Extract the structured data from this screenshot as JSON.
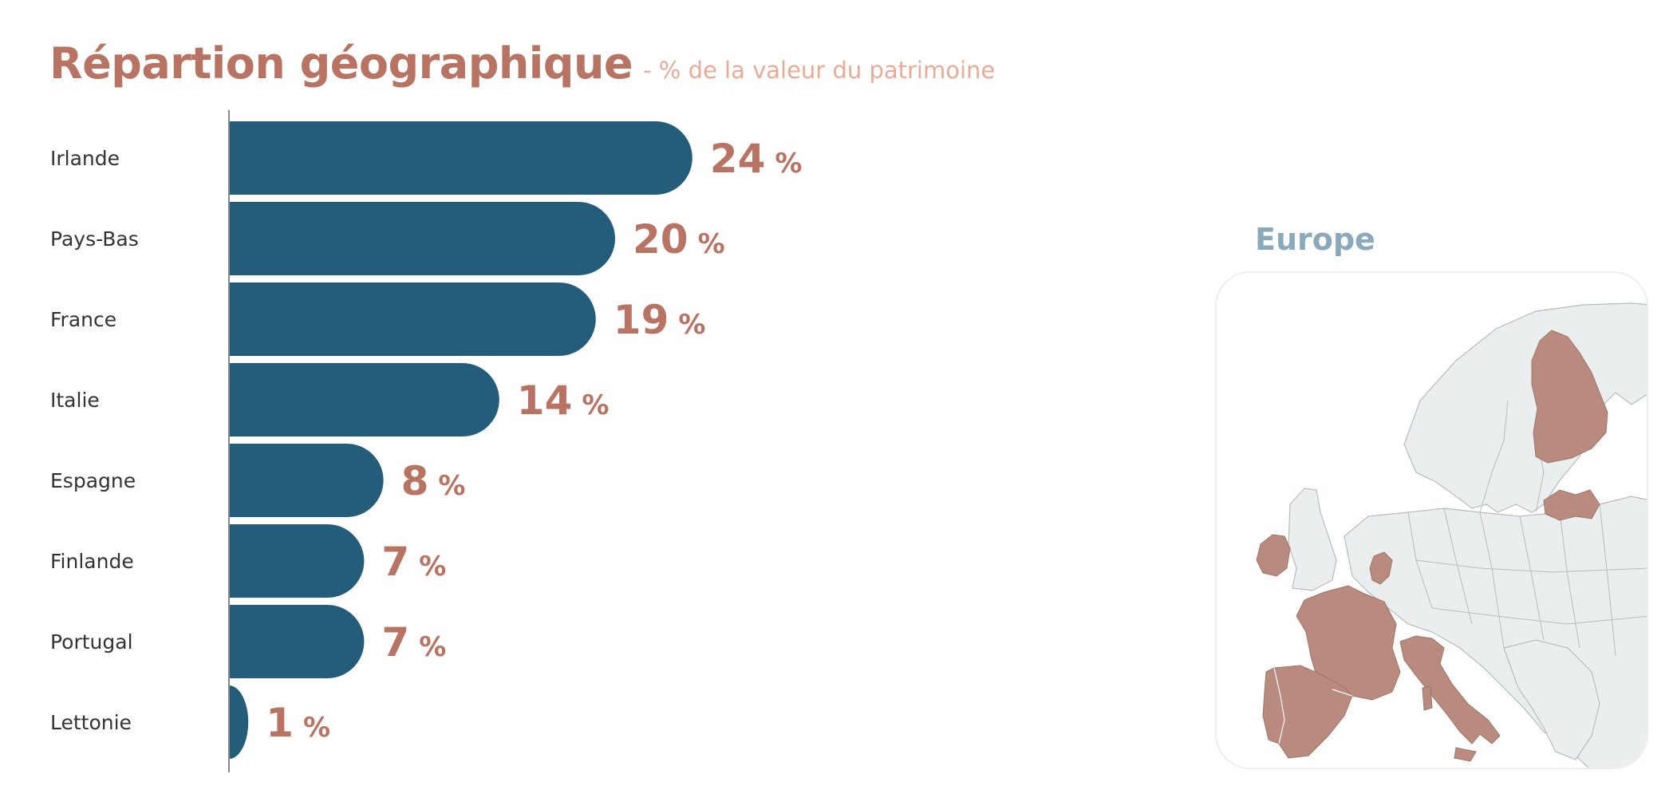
{
  "header": {
    "title": "Répartion géographique",
    "subtitle": "- % de la valeur du patrimoine"
  },
  "map": {
    "title": "Europe",
    "highlighted_countries": [
      "Irlande",
      "Pays-Bas",
      "France",
      "Italie",
      "Espagne",
      "Finlande",
      "Portugal",
      "Lettonie"
    ]
  },
  "colors": {
    "bar": "#245d7a",
    "value_label": "#b87363",
    "title": "#b87363",
    "subtitle": "#e8ab97",
    "map_title": "#8aaabb",
    "map_land": "#ebeeee",
    "map_highlight": "#b98a7e",
    "map_border": "#b8bcbc"
  },
  "chart_data": {
    "type": "bar",
    "orientation": "horizontal",
    "categories": [
      "Irlande",
      "Pays-Bas",
      "France",
      "Italie",
      "Espagne",
      "Finlande",
      "Portugal",
      "Lettonie"
    ],
    "values": [
      24,
      20,
      19,
      14,
      8,
      7,
      7,
      1
    ],
    "unit": "%",
    "value_labels": [
      "24",
      "20",
      "19",
      "14",
      "8",
      "7",
      "7",
      "1"
    ],
    "grid": false
  }
}
